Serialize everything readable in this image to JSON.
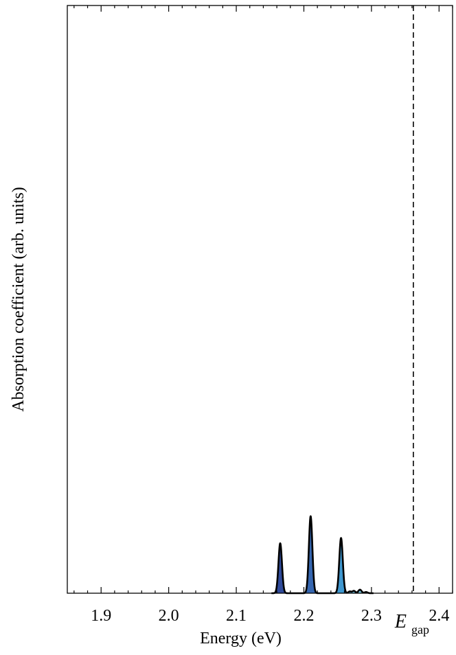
{
  "chart_data": {
    "type": "area",
    "xlabel": "Energy (eV)",
    "ylabel": "Absorption coefficient (arb. units)",
    "xlim": [
      1.85,
      2.42
    ],
    "ylim": [
      0,
      1.0
    ],
    "x_ticks": [
      1.9,
      2.0,
      2.1,
      2.2,
      2.3,
      2.4
    ],
    "x_tick_labels": [
      "1.9",
      "2.0",
      "2.1",
      "2.2",
      "2.3",
      "2.4"
    ],
    "y_ticks_shown": false,
    "gap_marker": {
      "x": 2.362,
      "label_main": "E",
      "label_sub": "gap",
      "style": "dashed"
    },
    "peaks": [
      {
        "center": 2.165,
        "height": 0.085,
        "width": 0.0026,
        "color": "#2f4a9a"
      },
      {
        "center": 2.21,
        "height": 0.131,
        "width": 0.0026,
        "color": "#3566b0"
      },
      {
        "center": 2.255,
        "height": 0.094,
        "width": 0.0026,
        "color": "#3f97cf"
      },
      {
        "center": 2.268,
        "height": 0.003,
        "width": 0.0022,
        "color": "#5fb8dd"
      },
      {
        "center": 2.274,
        "height": 0.004,
        "width": 0.0022,
        "color": "#6cc1e0"
      },
      {
        "center": 2.283,
        "height": 0.006,
        "width": 0.0024,
        "color": "#7ac9e3"
      },
      {
        "center": 2.292,
        "height": 0.002,
        "width": 0.0022,
        "color": "#8ad0e6"
      }
    ],
    "curve_color": "#000000",
    "grid": false
  }
}
